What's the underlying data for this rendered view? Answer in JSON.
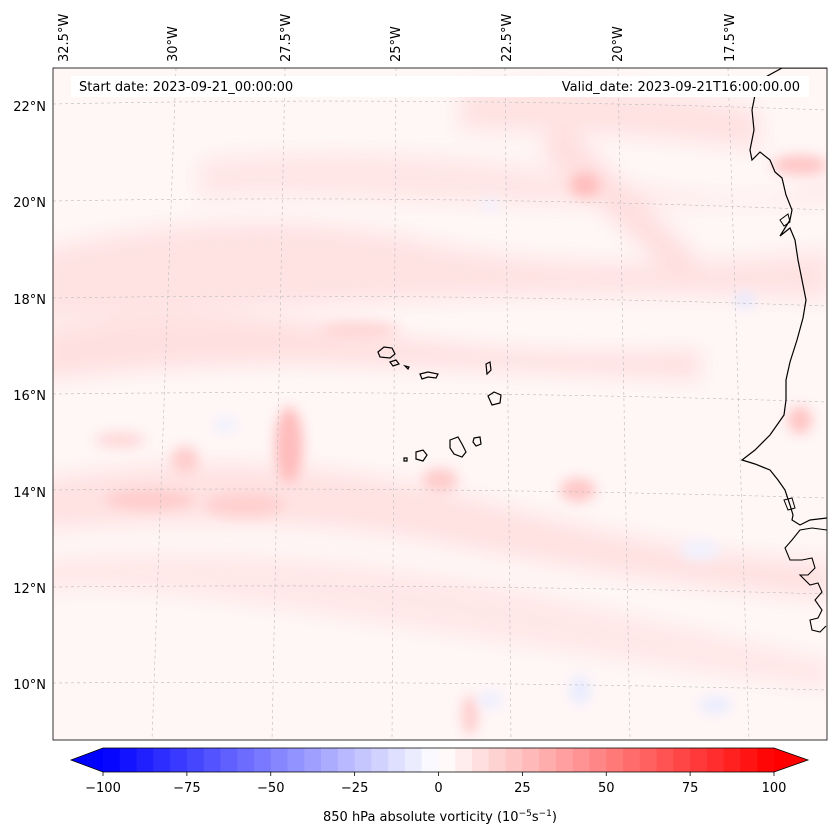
{
  "map": {
    "start_date": "Start date: 2023-09-21_00:00:00",
    "valid_date": "Valid_date: 2023-09-21T16:00:00.00",
    "lon_labels": [
      "32.5°W",
      "30°W",
      "27.5°W",
      "25°W",
      "22.5°W",
      "20°W",
      "17.5°W"
    ],
    "lat_labels": [
      "22°N",
      "20°N",
      "18°N",
      "16°N",
      "14°N",
      "12°N",
      "10°N"
    ],
    "features": [
      "Cape Verde islands",
      "West African coastline"
    ]
  },
  "colorbar": {
    "ticks": [
      "−100",
      "−75",
      "−50",
      "−25",
      "0",
      "25",
      "50",
      "75",
      "100"
    ],
    "min": -100,
    "max": 100,
    "label_main": "850 hPa absolute vorticity (10",
    "label_exp1": "−5",
    "label_unit": "s",
    "label_exp2": "−1",
    "label_close": ")",
    "cmap": "bwr"
  },
  "colors": {
    "land_edge": "#000000",
    "grid": "#bbbbbb",
    "neg": "#0000ff",
    "pos": "#ff0000"
  }
}
